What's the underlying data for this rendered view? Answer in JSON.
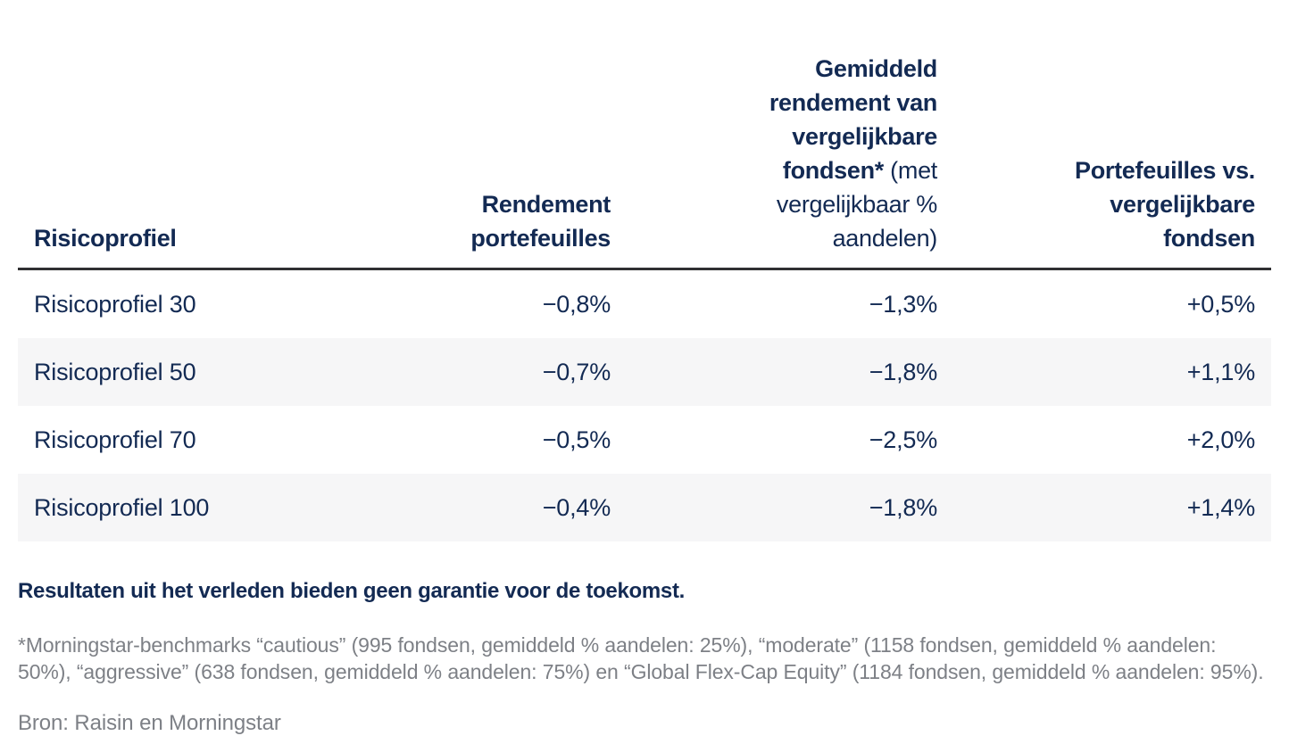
{
  "colors": {
    "navy": "#132a53",
    "gray_text": "#7d8086",
    "row_alt_bg": "#f6f6f7",
    "header_rule": "#303032"
  },
  "table": {
    "header": {
      "col1": "Risicoprofiel",
      "col2": "Rendement portefeuilles",
      "col3_bold": "Gemiddeld rendement van vergelijkbare fondsen*",
      "col3_regular": " (met vergelijkbaar % aandelen)",
      "col4": "Portefeuilles vs. vergelijkbare fondsen"
    },
    "rows": [
      {
        "label": "Risicoprofiel 30",
        "portfolio_return": "−0,8%",
        "benchmark_return": "−1,3%",
        "difference": "+0,5%"
      },
      {
        "label": "Risicoprofiel 50",
        "portfolio_return": "−0,7%",
        "benchmark_return": "−1,8%",
        "difference": "+1,1%"
      },
      {
        "label": "Risicoprofiel 70",
        "portfolio_return": "−0,5%",
        "benchmark_return": "−2,5%",
        "difference": "+2,0%"
      },
      {
        "label": "Risicoprofiel 100",
        "portfolio_return": "−0,4%",
        "benchmark_return": "−1,8%",
        "difference": "+1,4%"
      }
    ]
  },
  "chart_data": {
    "type": "table",
    "title": "",
    "columns": [
      "Risicoprofiel",
      "Rendement portefeuilles",
      "Gemiddeld rendement van vergelijkbare fondsen* (met vergelijkbaar % aandelen)",
      "Portefeuilles vs. vergelijkbare fondsen"
    ],
    "rows": [
      [
        "Risicoprofiel 30",
        "−0,8%",
        "−1,3%",
        "+0,5%"
      ],
      [
        "Risicoprofiel 50",
        "−0,7%",
        "−1,8%",
        "+1,1%"
      ],
      [
        "Risicoprofiel 70",
        "−0,5%",
        "−2,5%",
        "+2,0%"
      ],
      [
        "Risicoprofiel 100",
        "−0,4%",
        "−1,8%",
        "+1,4%"
      ]
    ],
    "values_numeric_pct": {
      "portfolio_return": [
        -0.8,
        -0.7,
        -0.5,
        -0.4
      ],
      "benchmark_return": [
        -1.3,
        -1.8,
        -2.5,
        -1.8
      ],
      "difference": [
        0.5,
        1.1,
        2.0,
        1.4
      ]
    }
  },
  "disclaimer": "Resultaten uit het verleden bieden geen garantie voor de toekomst.",
  "footnote": "*Morningstar-benchmarks “cautious” (995 fondsen, gemiddeld % aandelen: 25%), “moderate” (1158 fondsen, gemiddeld % aandelen: 50%), “aggressive” (638 fondsen, gemiddeld % aandelen: 75%) en “Global Flex-Cap Equity” (1184 fondsen, gemiddeld % aandelen: 95%).",
  "source": "Bron: Raisin en Morningstar"
}
